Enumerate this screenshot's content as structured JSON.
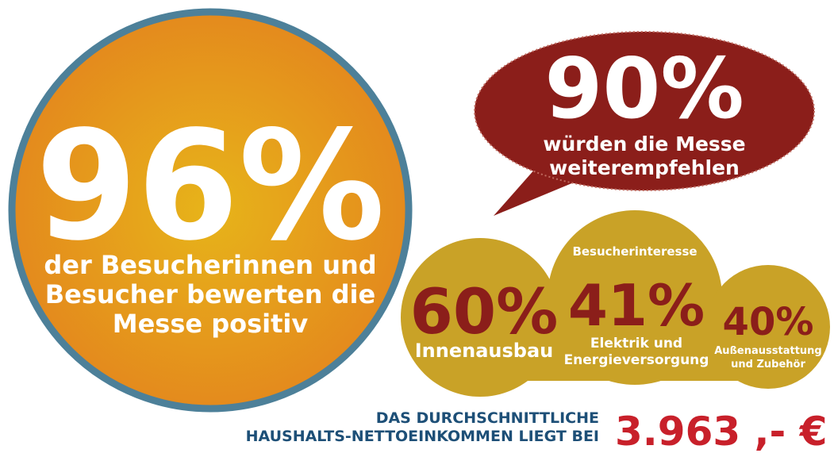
{
  "left": {
    "value": "96%",
    "caption": [
      "der Besucherinnen und",
      "Besucher bewerten die",
      "Messe positiv"
    ]
  },
  "bubble": {
    "value": "90%",
    "caption": [
      "würden die Messe",
      "weiterempfehlen"
    ]
  },
  "interest": {
    "title": "Besucherinteresse",
    "items": [
      {
        "value": "60%",
        "label": [
          "Innenausbau"
        ]
      },
      {
        "value": "41%",
        "label": [
          "Elektrik und",
          "Energieversorgung"
        ]
      },
      {
        "value": "40%",
        "label": [
          "Außenausstattung",
          "und Zubehör"
        ]
      }
    ]
  },
  "income": {
    "label": [
      "DAS DURCHSCHNITTLICHE",
      "HAUSHALTS-NETTOEINKOMMEN LIEGT BEI"
    ],
    "value": "3.963 ,- €"
  }
}
